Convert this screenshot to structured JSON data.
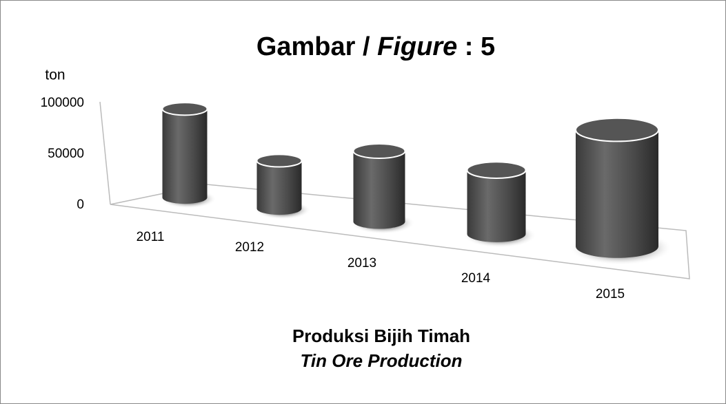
{
  "chart_data": {
    "type": "bar3d",
    "title": [
      "Gambar / ",
      "Figure",
      " : 5"
    ],
    "y_axis_label": "ton",
    "subtitle": [
      "Produksi Bijih Timah",
      "Tin Ore Production"
    ],
    "categories": [
      "2011",
      "2012",
      "2013",
      "2014",
      "2015"
    ],
    "values": [
      87000,
      47000,
      60000,
      48000,
      62000
    ],
    "color": "#555555",
    "ylim": [
      0,
      100000
    ],
    "yticks": [
      0,
      50000,
      100000
    ]
  }
}
